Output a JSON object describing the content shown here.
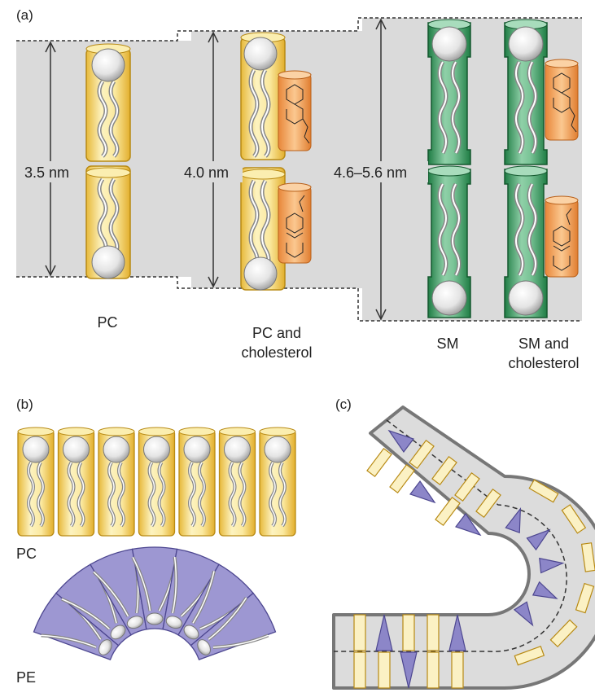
{
  "panels": {
    "a": {
      "label": "(a)",
      "dimensions": [
        "3.5 nm",
        "4.0 nm",
        "4.6–5.6 nm"
      ],
      "groups": [
        {
          "line1": "PC",
          "line2": ""
        },
        {
          "line1": "PC and",
          "line2": "cholesterol"
        },
        {
          "line1": "SM",
          "line2": ""
        },
        {
          "line1": "SM and",
          "line2": "cholesterol"
        }
      ]
    },
    "b": {
      "label": "(b)",
      "row1_label": "PC",
      "row2_label": "PE"
    },
    "c": {
      "label": "(c)"
    }
  },
  "colors": {
    "pc_yellow": "#f3d36b",
    "sm_green": "#3a9a5e",
    "cholesterol_orange": "#f0a35a",
    "pe_purple": "#8c86c8",
    "membrane_gray": "#dcdcdc"
  }
}
